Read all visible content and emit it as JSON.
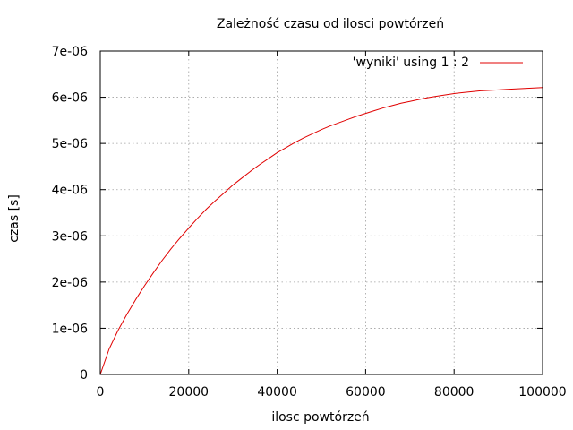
{
  "chart_data": {
    "type": "line",
    "title": "Zależność czasu od ilosci powtórzeń",
    "xlabel": "ilosc powtórzeń",
    "ylabel": "czas [s]",
    "xlim": [
      0,
      100000
    ],
    "ylim": [
      0,
      7e-06
    ],
    "xticks": [
      0,
      20000,
      40000,
      60000,
      80000,
      100000
    ],
    "xtick_labels": [
      "0",
      "20000",
      "40000",
      "60000",
      "80000",
      "100000"
    ],
    "yticks": [
      0,
      1e-06,
      2e-06,
      3e-06,
      4e-06,
      5e-06,
      6e-06,
      7e-06
    ],
    "ytick_labels": [
      "0",
      "1e-06",
      "2e-06",
      "3e-06",
      "4e-06",
      "5e-06",
      "6e-06",
      "7e-06"
    ],
    "grid": true,
    "legend_position": "top-right",
    "series": [
      {
        "name": "'wyniki' using 1 : 2",
        "color": "#e00000",
        "x": [
          0,
          2000,
          4000,
          6000,
          8000,
          10000,
          12000,
          14000,
          16000,
          18000,
          20000,
          22000,
          24000,
          26000,
          28000,
          30000,
          32000,
          34000,
          36000,
          38000,
          40000,
          42000,
          44000,
          46000,
          48000,
          50000,
          52000,
          54000,
          56000,
          58000,
          60000,
          62000,
          64000,
          66000,
          68000,
          70000,
          72000,
          74000,
          76000,
          78000,
          80000,
          82000,
          84000,
          86000,
          88000,
          90000,
          92000,
          94000,
          96000,
          98000,
          100000
        ],
        "y": [
          0,
          5.5e-07,
          9.5e-07,
          1.3e-06,
          1.62e-06,
          1.92e-06,
          2.2e-06,
          2.47e-06,
          2.72e-06,
          2.95e-06,
          3.17e-06,
          3.38e-06,
          3.58e-06,
          3.76e-06,
          3.93e-06,
          4.1e-06,
          4.25e-06,
          4.4e-06,
          4.54e-06,
          4.67e-06,
          4.8e-06,
          4.91e-06,
          5.02e-06,
          5.12e-06,
          5.21e-06,
          5.3e-06,
          5.38e-06,
          5.45e-06,
          5.52e-06,
          5.59e-06,
          5.65e-06,
          5.71e-06,
          5.77e-06,
          5.82e-06,
          5.87e-06,
          5.91e-06,
          5.95e-06,
          5.99e-06,
          6.02e-06,
          6.05e-06,
          6.08e-06,
          6.1e-06,
          6.12e-06,
          6.14e-06,
          6.15e-06,
          6.16e-06,
          6.17e-06,
          6.18e-06,
          6.19e-06,
          6.2e-06,
          6.21e-06
        ]
      }
    ]
  }
}
